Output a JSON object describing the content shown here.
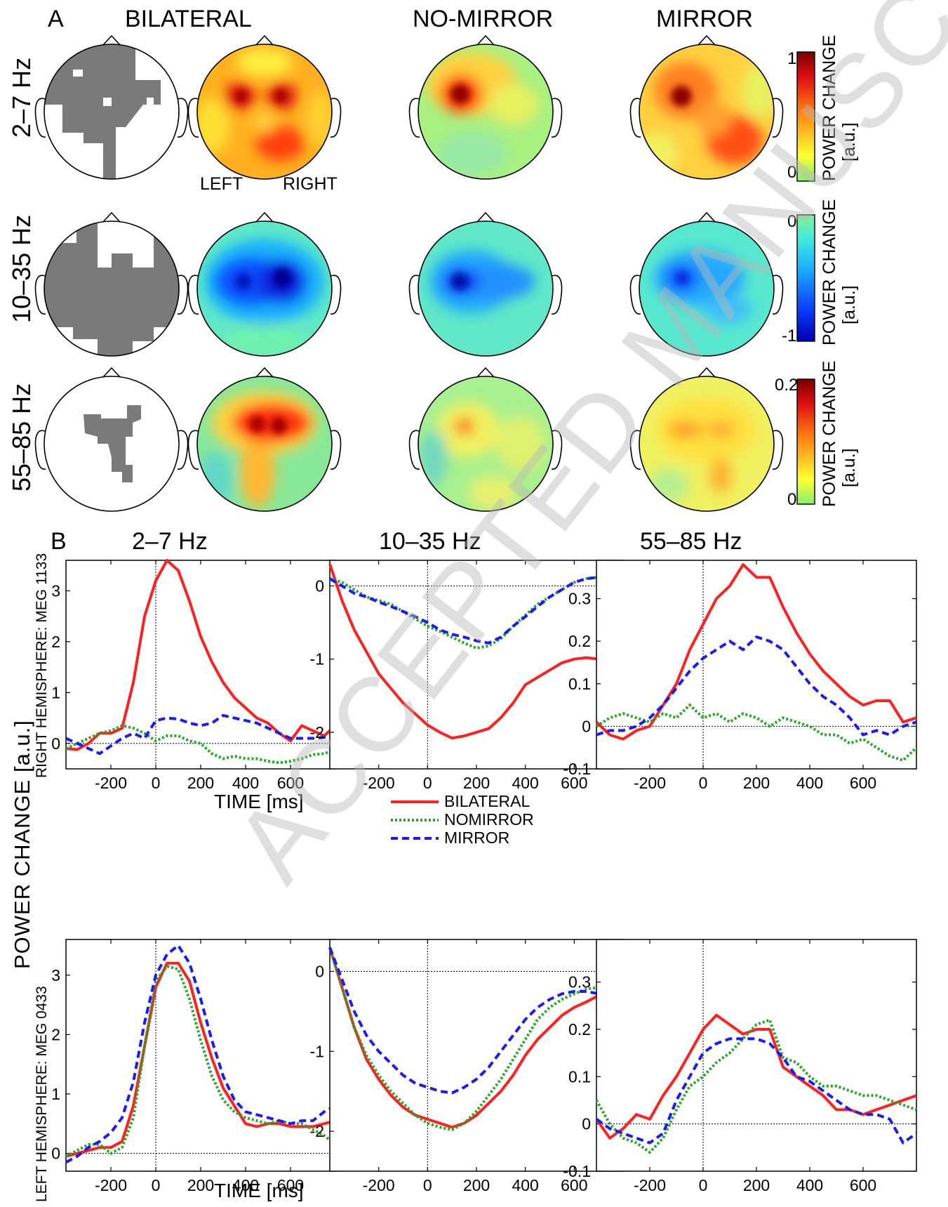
{
  "watermark": "ACCEPTED MANUSCRIPT",
  "panel_a": {
    "letter": "A",
    "headers": [
      "BILATERAL",
      "NO-MIRROR",
      "MIRROR"
    ],
    "rows": [
      {
        "label": "2–7 Hz",
        "colorbar": {
          "max": "1",
          "min": "0",
          "title": "POWER CHANGE",
          "unit": "[a.u.]",
          "scheme": "positive"
        }
      },
      {
        "label": "10–35 Hz",
        "colorbar": {
          "max": "0",
          "min": "-1",
          "title": "POWER CHANGE",
          "unit": "[a.u.]",
          "scheme": "negative"
        }
      },
      {
        "label": "55–85 Hz",
        "colorbar": {
          "max": "0.2",
          "min": "0",
          "title": "POWER CHANGE",
          "unit": "[a.u.]",
          "scheme": "positive"
        }
      }
    ],
    "left_label": "LEFT",
    "right_label": "RIGHT"
  },
  "panel_b": {
    "letter": "B",
    "titles": [
      "2–7 Hz",
      "10–35 Hz",
      "55–85 Hz"
    ],
    "ylabel_main": "POWER  CHANGE   [a.u.]",
    "ylabel_right": "RIGHT HEMISPHERE: MEG 1133",
    "ylabel_left": "LEFT HEMISPHERE: MEG 0433",
    "xlabel": "TIME  [ms]",
    "legend": [
      {
        "label": "BILATERAL",
        "color": "#ff2020",
        "style": "solid"
      },
      {
        "label": "NOMIRROR",
        "color": "#22aa22",
        "style": "dotted"
      },
      {
        "label": "MIRROR",
        "color": "#1a1aff",
        "style": "dashed"
      }
    ]
  },
  "chart_data": [
    {
      "type": "line",
      "title": "2–7 Hz",
      "row": "RIGHT HEMISPHERE: MEG 1133",
      "xlabel": "TIME  [ms]",
      "xlim": [
        -400,
        800
      ],
      "ylim": [
        -0.5,
        3.6
      ],
      "xticks": [
        -200,
        0,
        200,
        400,
        600
      ],
      "yticks": [
        0,
        1,
        2,
        3
      ],
      "ytick_labels": [
        "0",
        "1",
        "2",
        "3"
      ],
      "x": [
        -400,
        -350,
        -300,
        -250,
        -200,
        -150,
        -100,
        -50,
        0,
        50,
        100,
        150,
        200,
        250,
        300,
        350,
        400,
        450,
        500,
        550,
        600,
        650,
        700,
        750,
        800
      ],
      "series": [
        {
          "name": "BILATERAL",
          "values": [
            -0.1,
            -0.12,
            0.0,
            0.2,
            0.2,
            0.3,
            1.2,
            2.5,
            3.2,
            3.6,
            3.4,
            2.8,
            2.1,
            1.6,
            1.2,
            0.9,
            0.7,
            0.5,
            0.4,
            0.2,
            0.05,
            0.35,
            0.25,
            0.15,
            0.35
          ]
        },
        {
          "name": "NOMIRROR",
          "values": [
            -0.1,
            0.0,
            0.1,
            0.2,
            0.25,
            0.35,
            0.3,
            0.2,
            0.05,
            0.15,
            0.15,
            0.05,
            0.0,
            -0.2,
            -0.3,
            -0.25,
            -0.3,
            -0.3,
            -0.35,
            -0.38,
            -0.35,
            -0.3,
            -0.22,
            -0.2,
            -0.12
          ]
        },
        {
          "name": "MIRROR",
          "values": [
            0.1,
            0.0,
            -0.1,
            -0.2,
            -0.05,
            0.1,
            0.2,
            0.1,
            0.45,
            0.5,
            0.48,
            0.4,
            0.35,
            0.4,
            0.55,
            0.5,
            0.45,
            0.4,
            0.3,
            0.2,
            0.1,
            0.1,
            0.1,
            0.12,
            0.2
          ]
        }
      ]
    },
    {
      "type": "line",
      "title": "10–35 Hz",
      "row": "RIGHT HEMISPHERE: MEG 1133",
      "xlabel": "",
      "xlim": [
        -400,
        800
      ],
      "ylim": [
        -2.5,
        0.35
      ],
      "xticks": [
        -200,
        0,
        200,
        400,
        600
      ],
      "yticks": [
        -2,
        -1,
        0
      ],
      "ytick_labels": [
        "-2",
        "-1",
        "0"
      ],
      "x": [
        -400,
        -350,
        -300,
        -250,
        -200,
        -150,
        -100,
        -50,
        0,
        50,
        100,
        150,
        200,
        250,
        300,
        350,
        400,
        450,
        500,
        550,
        600,
        650,
        700,
        750,
        800
      ],
      "series": [
        {
          "name": "BILATERAL",
          "values": [
            0.3,
            -0.2,
            -0.6,
            -0.9,
            -1.2,
            -1.4,
            -1.6,
            -1.75,
            -1.9,
            -2.0,
            -2.08,
            -2.05,
            -2.0,
            -1.95,
            -1.8,
            -1.6,
            -1.35,
            -1.25,
            -1.15,
            -1.05,
            -1.0,
            -0.98,
            -1.0,
            -1.05,
            -1.08
          ]
        },
        {
          "name": "NOMIRROR",
          "values": [
            0.1,
            0.05,
            -0.05,
            -0.15,
            -0.2,
            -0.25,
            -0.35,
            -0.45,
            -0.55,
            -0.62,
            -0.7,
            -0.78,
            -0.85,
            -0.82,
            -0.72,
            -0.55,
            -0.4,
            -0.25,
            -0.15,
            -0.05,
            0.05,
            0.1,
            0.12,
            0.15,
            0.2
          ]
        },
        {
          "name": "MIRROR",
          "values": [
            0.1,
            0.0,
            -0.1,
            -0.15,
            -0.22,
            -0.28,
            -0.35,
            -0.42,
            -0.5,
            -0.6,
            -0.66,
            -0.7,
            -0.75,
            -0.78,
            -0.7,
            -0.55,
            -0.42,
            -0.28,
            -0.15,
            -0.05,
            0.05,
            0.1,
            0.12,
            0.12,
            0.13
          ]
        }
      ]
    },
    {
      "type": "line",
      "title": "55–85 Hz",
      "row": "RIGHT HEMISPHERE: MEG 1133",
      "xlabel": "",
      "xlim": [
        -400,
        800
      ],
      "ylim": [
        -0.1,
        0.39
      ],
      "xticks": [
        -200,
        0,
        200,
        400,
        600
      ],
      "yticks": [
        -0.1,
        0,
        0.1,
        0.2,
        0.3
      ],
      "ytick_labels": [
        "-0.1",
        "0",
        "0.1",
        "0.2",
        "0.3"
      ],
      "x": [
        -400,
        -350,
        -300,
        -250,
        -200,
        -150,
        -100,
        -50,
        0,
        50,
        100,
        150,
        200,
        250,
        300,
        350,
        400,
        450,
        500,
        550,
        600,
        650,
        700,
        750,
        800
      ],
      "series": [
        {
          "name": "BILATERAL",
          "values": [
            0.01,
            -0.02,
            -0.03,
            -0.01,
            0.0,
            0.05,
            0.1,
            0.18,
            0.24,
            0.3,
            0.33,
            0.38,
            0.35,
            0.35,
            0.28,
            0.22,
            0.17,
            0.13,
            0.1,
            0.07,
            0.05,
            0.06,
            0.06,
            0.01,
            0.02
          ]
        },
        {
          "name": "NOMIRROR",
          "values": [
            0.0,
            0.02,
            0.03,
            0.02,
            0.01,
            0.03,
            0.02,
            0.05,
            0.02,
            0.03,
            0.01,
            0.03,
            0.02,
            0.0,
            0.02,
            0.01,
            0.0,
            -0.02,
            -0.02,
            -0.04,
            -0.03,
            -0.05,
            -0.07,
            -0.08,
            -0.05
          ]
        },
        {
          "name": "MIRROR",
          "values": [
            -0.02,
            -0.01,
            -0.01,
            0.0,
            0.02,
            0.05,
            0.09,
            0.13,
            0.16,
            0.18,
            0.2,
            0.18,
            0.21,
            0.2,
            0.18,
            0.14,
            0.1,
            0.07,
            0.05,
            0.02,
            -0.02,
            -0.01,
            -0.02,
            0.0,
            0.01
          ]
        }
      ]
    },
    {
      "type": "line",
      "title": "2–7 Hz",
      "row": "LEFT HEMISPHERE: MEG 0433",
      "xlabel": "TIME  [ms]",
      "xlim": [
        -400,
        800
      ],
      "ylim": [
        -0.3,
        3.6
      ],
      "xticks": [
        -200,
        0,
        200,
        400,
        600
      ],
      "yticks": [
        0,
        1,
        2,
        3
      ],
      "ytick_labels": [
        "0",
        "1",
        "2",
        "3"
      ],
      "x": [
        -400,
        -350,
        -300,
        -250,
        -200,
        -150,
        -100,
        -50,
        0,
        50,
        100,
        150,
        200,
        250,
        300,
        350,
        400,
        450,
        500,
        550,
        600,
        650,
        700,
        750,
        800
      ],
      "series": [
        {
          "name": "BILATERAL",
          "values": [
            -0.05,
            0.0,
            0.05,
            0.1,
            0.1,
            0.2,
            0.8,
            1.8,
            2.8,
            3.2,
            3.2,
            2.9,
            2.2,
            1.6,
            1.1,
            0.8,
            0.5,
            0.45,
            0.5,
            0.5,
            0.45,
            0.45,
            0.45,
            0.5,
            0.55
          ]
        },
        {
          "name": "NOMIRROR",
          "values": [
            -0.05,
            0.05,
            0.15,
            0.15,
            0.0,
            0.1,
            0.6,
            1.8,
            2.9,
            3.15,
            3.1,
            2.6,
            1.9,
            1.3,
            0.9,
            0.7,
            0.6,
            0.55,
            0.5,
            0.55,
            0.5,
            0.5,
            0.4,
            0.3,
            0.15
          ]
        },
        {
          "name": "MIRROR",
          "values": [
            -0.15,
            -0.05,
            0.1,
            0.2,
            0.35,
            0.6,
            1.2,
            2.2,
            3.0,
            3.35,
            3.5,
            3.2,
            2.6,
            1.9,
            1.3,
            0.9,
            0.7,
            0.65,
            0.6,
            0.55,
            0.5,
            0.55,
            0.55,
            0.7,
            0.8
          ]
        }
      ]
    },
    {
      "type": "line",
      "title": "10–35 Hz",
      "row": "LEFT HEMISPHERE: MEG 0433",
      "xlabel": "",
      "xlim": [
        -400,
        800
      ],
      "ylim": [
        -2.5,
        0.4
      ],
      "xticks": [
        -200,
        0,
        200,
        400,
        600
      ],
      "yticks": [
        -2,
        -1,
        0
      ],
      "ytick_labels": [
        "-2",
        "-1",
        "0"
      ],
      "x": [
        -400,
        -350,
        -300,
        -250,
        -200,
        -150,
        -100,
        -50,
        0,
        50,
        100,
        150,
        200,
        250,
        300,
        350,
        400,
        450,
        500,
        550,
        600,
        650,
        700,
        750,
        800
      ],
      "series": [
        {
          "name": "BILATERAL",
          "values": [
            0.3,
            -0.2,
            -0.7,
            -1.1,
            -1.35,
            -1.55,
            -1.7,
            -1.8,
            -1.85,
            -1.9,
            -1.95,
            -1.9,
            -1.8,
            -1.65,
            -1.5,
            -1.3,
            -1.05,
            -0.85,
            -0.7,
            -0.55,
            -0.45,
            -0.38,
            -0.3,
            -0.3,
            -0.3
          ]
        },
        {
          "name": "NOMIRROR",
          "values": [
            0.3,
            -0.2,
            -0.7,
            -1.05,
            -1.3,
            -1.5,
            -1.65,
            -1.8,
            -1.9,
            -1.95,
            -1.98,
            -1.9,
            -1.75,
            -1.55,
            -1.35,
            -1.1,
            -0.85,
            -0.6,
            -0.45,
            -0.35,
            -0.28,
            -0.22,
            -0.2,
            -0.2,
            -0.22
          ]
        },
        {
          "name": "MIRROR",
          "values": [
            0.3,
            -0.1,
            -0.5,
            -0.8,
            -1.0,
            -1.15,
            -1.3,
            -1.4,
            -1.45,
            -1.5,
            -1.52,
            -1.45,
            -1.35,
            -1.2,
            -1.0,
            -0.8,
            -0.6,
            -0.45,
            -0.35,
            -0.28,
            -0.25,
            -0.25,
            -0.28,
            -0.3,
            -0.35
          ]
        }
      ]
    },
    {
      "type": "line",
      "title": "55–85 Hz",
      "row": "LEFT HEMISPHERE: MEG 0433",
      "xlabel": "",
      "xlim": [
        -400,
        800
      ],
      "ylim": [
        -0.1,
        0.39
      ],
      "xticks": [
        -200,
        0,
        200,
        400,
        600
      ],
      "yticks": [
        -0.1,
        0,
        0.1,
        0.2,
        0.3
      ],
      "ytick_labels": [
        "-0.1",
        "0",
        "0.1",
        "0.2",
        "0.3"
      ],
      "x": [
        -400,
        -350,
        -300,
        -250,
        -200,
        -150,
        -100,
        -50,
        0,
        50,
        100,
        150,
        200,
        250,
        300,
        350,
        400,
        450,
        500,
        550,
        600,
        650,
        700,
        750,
        800
      ],
      "series": [
        {
          "name": "BILATERAL",
          "values": [
            0.01,
            -0.03,
            -0.01,
            0.02,
            0.01,
            0.06,
            0.1,
            0.15,
            0.2,
            0.23,
            0.21,
            0.19,
            0.2,
            0.2,
            0.12,
            0.1,
            0.08,
            0.06,
            0.03,
            0.03,
            0.02,
            0.03,
            0.04,
            0.05,
            0.06
          ]
        },
        {
          "name": "NOMIRROR",
          "values": [
            0.05,
            0.0,
            -0.03,
            -0.04,
            -0.06,
            -0.03,
            0.03,
            0.08,
            0.1,
            0.13,
            0.15,
            0.18,
            0.21,
            0.22,
            0.14,
            0.13,
            0.1,
            0.08,
            0.08,
            0.07,
            0.06,
            0.06,
            0.05,
            0.04,
            0.03
          ]
        },
        {
          "name": "MIRROR",
          "values": [
            0.01,
            -0.01,
            -0.02,
            -0.03,
            -0.04,
            -0.02,
            0.05,
            0.1,
            0.15,
            0.17,
            0.18,
            0.18,
            0.18,
            0.17,
            0.14,
            0.1,
            0.09,
            0.07,
            0.05,
            0.03,
            0.02,
            0.02,
            0.01,
            -0.04,
            -0.02
          ]
        }
      ]
    }
  ]
}
